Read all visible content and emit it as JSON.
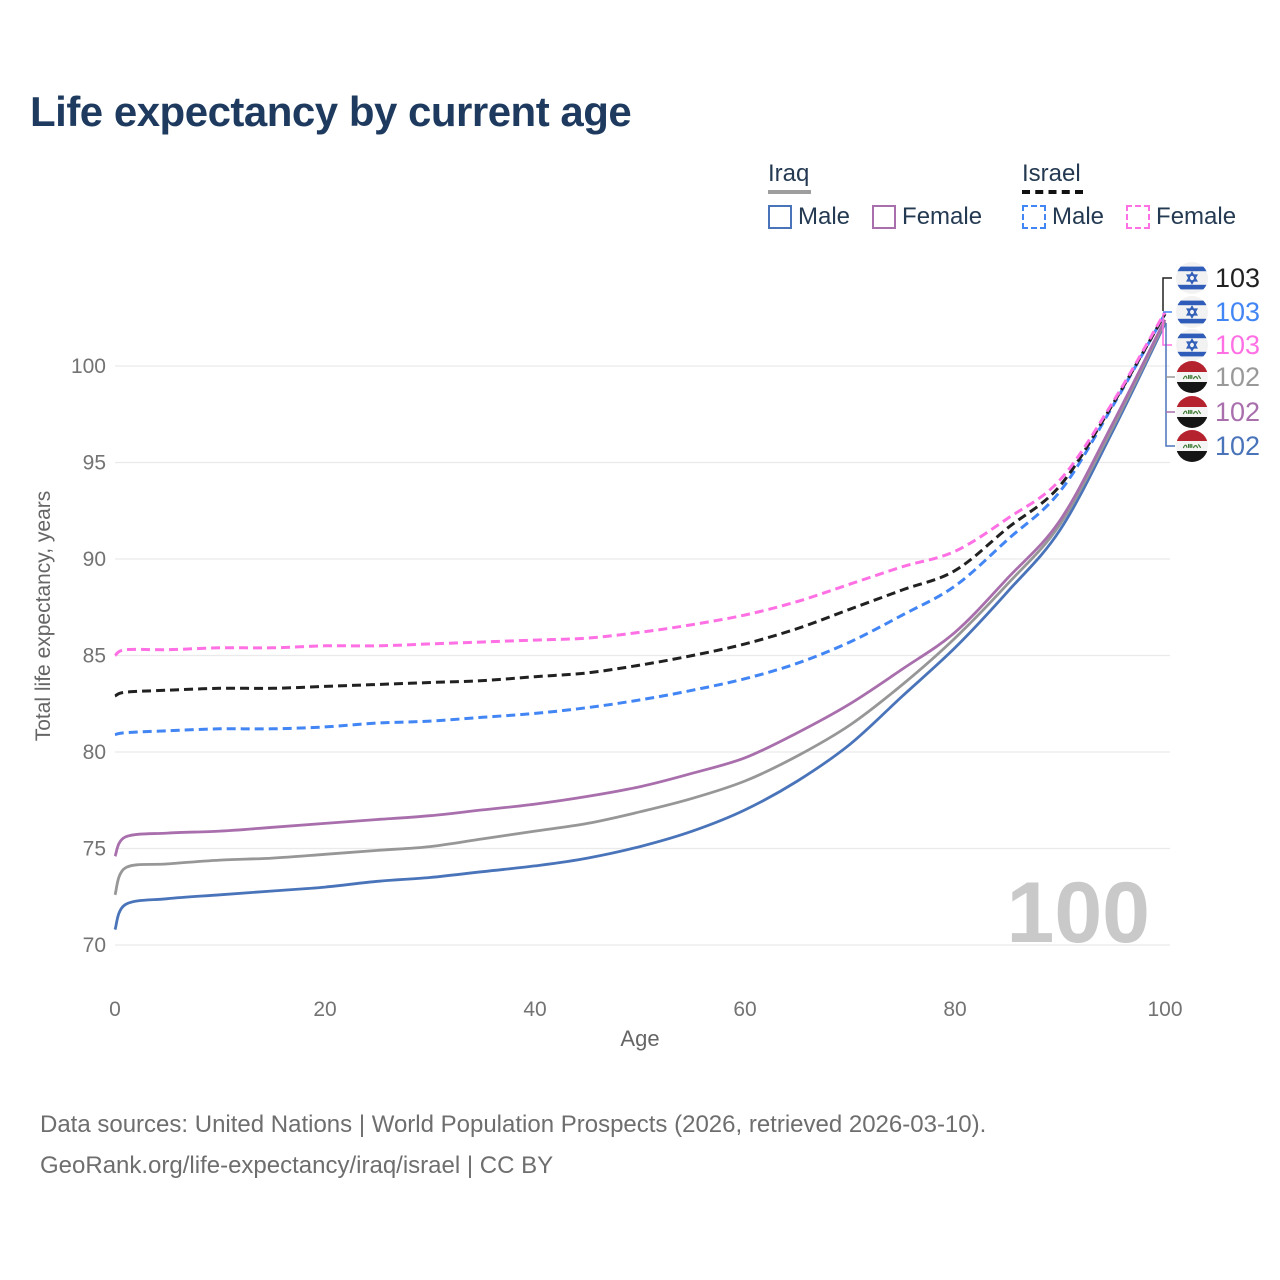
{
  "title": "Life expectancy by current age",
  "legend": {
    "groups": [
      {
        "label": "Iraq",
        "underline_style": "solid",
        "underline_color": "#9e9e9e",
        "items": [
          {
            "label": "Male",
            "color": "#4a74ba",
            "swatch_style": "solid"
          },
          {
            "label": "Female",
            "color": "#a96fad",
            "swatch_style": "solid"
          }
        ]
      },
      {
        "label": "Israel",
        "underline_style": "dashed",
        "underline_color": "#111111",
        "items": [
          {
            "label": "Male",
            "color": "#4285f4",
            "swatch_style": "dashed"
          },
          {
            "label": "Female",
            "color": "#ff70e4",
            "swatch_style": "dashed"
          }
        ]
      }
    ]
  },
  "chart_data": {
    "type": "line",
    "title": "Life expectancy by current age",
    "xlabel": "Age",
    "ylabel": "Total life expectancy, years",
    "x": [
      0,
      1,
      5,
      10,
      15,
      20,
      25,
      30,
      35,
      40,
      45,
      50,
      55,
      60,
      65,
      70,
      75,
      80,
      85,
      90,
      95,
      100
    ],
    "series": [
      {
        "id": "iraq-male",
        "name": "Iraq Male",
        "color": "#4a74ba",
        "dashed": false,
        "values": [
          70.8,
          72.1,
          72.4,
          72.6,
          72.8,
          73.0,
          73.3,
          73.5,
          73.8,
          74.1,
          74.5,
          75.1,
          75.9,
          77.0,
          78.5,
          80.4,
          82.9,
          85.4,
          88.3,
          91.5,
          96.6,
          102.2
        ]
      },
      {
        "id": "iraq-both",
        "name": "Iraq Both sexes",
        "color": "#979797",
        "dashed": false,
        "values": [
          72.6,
          74.0,
          74.2,
          74.4,
          74.5,
          74.7,
          74.9,
          75.1,
          75.5,
          75.9,
          76.3,
          76.9,
          77.6,
          78.5,
          79.8,
          81.4,
          83.5,
          85.9,
          88.7,
          91.8,
          96.8,
          102.3
        ]
      },
      {
        "id": "iraq-female",
        "name": "Iraq Female",
        "color": "#a96fad",
        "dashed": false,
        "values": [
          74.6,
          75.6,
          75.8,
          75.9,
          76.1,
          76.3,
          76.5,
          76.7,
          77.0,
          77.3,
          77.7,
          78.2,
          78.9,
          79.7,
          81.0,
          82.5,
          84.3,
          86.2,
          89.0,
          92.0,
          97.0,
          102.4
        ]
      },
      {
        "id": "israel-male",
        "name": "Israel Male",
        "color": "#4285f4",
        "dashed": true,
        "values": [
          80.9,
          81.0,
          81.1,
          81.2,
          81.2,
          81.3,
          81.5,
          81.6,
          81.8,
          82.0,
          82.3,
          82.7,
          83.2,
          83.8,
          84.6,
          85.7,
          87.1,
          88.6,
          91.0,
          93.5,
          97.9,
          102.7
        ]
      },
      {
        "id": "israel-both",
        "name": "Israel Both sexes",
        "color": "#212121",
        "dashed": true,
        "values": [
          82.9,
          83.1,
          83.2,
          83.3,
          83.3,
          83.4,
          83.5,
          83.6,
          83.7,
          83.9,
          84.1,
          84.5,
          85.0,
          85.6,
          86.4,
          87.4,
          88.4,
          89.4,
          91.6,
          93.8,
          98.0,
          102.7
        ]
      },
      {
        "id": "israel-female",
        "name": "Israel Female",
        "color": "#ff70e4",
        "dashed": true,
        "values": [
          85.0,
          85.3,
          85.3,
          85.4,
          85.4,
          85.5,
          85.5,
          85.6,
          85.7,
          85.8,
          85.9,
          86.2,
          86.6,
          87.1,
          87.8,
          88.7,
          89.6,
          90.4,
          92.1,
          94.1,
          98.1,
          102.8
        ]
      }
    ],
    "xticks": [
      0,
      20,
      40,
      60,
      80,
      100
    ],
    "yticks": [
      70,
      75,
      80,
      85,
      90,
      95,
      100
    ],
    "xlim": [
      0,
      100
    ],
    "ylim": [
      70,
      103
    ],
    "grid": "horizontal",
    "legend_position": "top-right"
  },
  "end_labels": [
    {
      "flag": "israel",
      "value": "103",
      "color": "#212121"
    },
    {
      "flag": "israel",
      "value": "103",
      "color": "#4285f4"
    },
    {
      "flag": "israel",
      "value": "103",
      "color": "#ff70e4"
    },
    {
      "flag": "iraq",
      "value": "102",
      "color": "#999999"
    },
    {
      "flag": "iraq",
      "value": "102",
      "color": "#a96fad"
    },
    {
      "flag": "iraq",
      "value": "102",
      "color": "#4a74ba"
    }
  ],
  "watermark": {
    "value": "100"
  },
  "footer": {
    "line1": "Data sources: United Nations | World Population Prospects (2026, retrieved 2026-03-10).",
    "line2": "GeoRank.org/life-expectancy/iraq/israel | CC BY"
  }
}
